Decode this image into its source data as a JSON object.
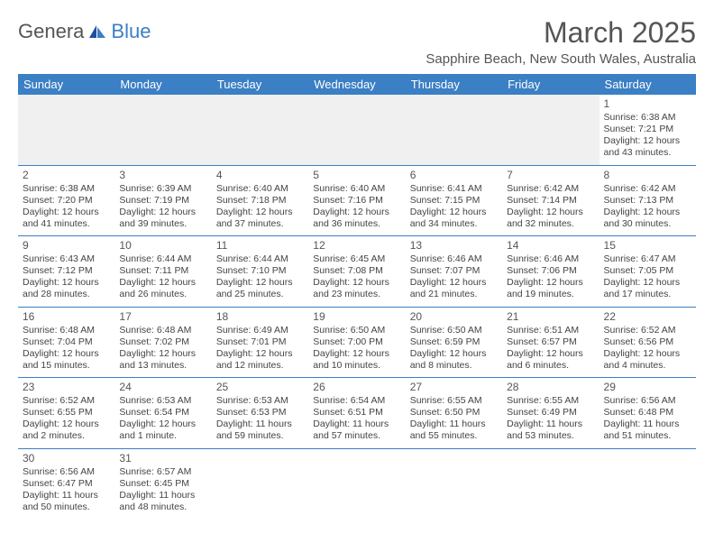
{
  "logo": {
    "part1": "Genera",
    "part2": "Blue"
  },
  "title": "March 2025",
  "location": "Sapphire Beach, New South Wales, Australia",
  "colors": {
    "header_bg": "#3b7fc4",
    "header_text": "#ffffff",
    "rule": "#3b7fc4",
    "text": "#444444",
    "empty_bg": "#f0f0f0"
  },
  "days_of_week": [
    "Sunday",
    "Monday",
    "Tuesday",
    "Wednesday",
    "Thursday",
    "Friday",
    "Saturday"
  ],
  "weeks": [
    [
      null,
      null,
      null,
      null,
      null,
      null,
      {
        "n": "1",
        "sr": "Sunrise: 6:38 AM",
        "ss": "Sunset: 7:21 PM",
        "dl1": "Daylight: 12 hours",
        "dl2": "and 43 minutes."
      }
    ],
    [
      {
        "n": "2",
        "sr": "Sunrise: 6:38 AM",
        "ss": "Sunset: 7:20 PM",
        "dl1": "Daylight: 12 hours",
        "dl2": "and 41 minutes."
      },
      {
        "n": "3",
        "sr": "Sunrise: 6:39 AM",
        "ss": "Sunset: 7:19 PM",
        "dl1": "Daylight: 12 hours",
        "dl2": "and 39 minutes."
      },
      {
        "n": "4",
        "sr": "Sunrise: 6:40 AM",
        "ss": "Sunset: 7:18 PM",
        "dl1": "Daylight: 12 hours",
        "dl2": "and 37 minutes."
      },
      {
        "n": "5",
        "sr": "Sunrise: 6:40 AM",
        "ss": "Sunset: 7:16 PM",
        "dl1": "Daylight: 12 hours",
        "dl2": "and 36 minutes."
      },
      {
        "n": "6",
        "sr": "Sunrise: 6:41 AM",
        "ss": "Sunset: 7:15 PM",
        "dl1": "Daylight: 12 hours",
        "dl2": "and 34 minutes."
      },
      {
        "n": "7",
        "sr": "Sunrise: 6:42 AM",
        "ss": "Sunset: 7:14 PM",
        "dl1": "Daylight: 12 hours",
        "dl2": "and 32 minutes."
      },
      {
        "n": "8",
        "sr": "Sunrise: 6:42 AM",
        "ss": "Sunset: 7:13 PM",
        "dl1": "Daylight: 12 hours",
        "dl2": "and 30 minutes."
      }
    ],
    [
      {
        "n": "9",
        "sr": "Sunrise: 6:43 AM",
        "ss": "Sunset: 7:12 PM",
        "dl1": "Daylight: 12 hours",
        "dl2": "and 28 minutes."
      },
      {
        "n": "10",
        "sr": "Sunrise: 6:44 AM",
        "ss": "Sunset: 7:11 PM",
        "dl1": "Daylight: 12 hours",
        "dl2": "and 26 minutes."
      },
      {
        "n": "11",
        "sr": "Sunrise: 6:44 AM",
        "ss": "Sunset: 7:10 PM",
        "dl1": "Daylight: 12 hours",
        "dl2": "and 25 minutes."
      },
      {
        "n": "12",
        "sr": "Sunrise: 6:45 AM",
        "ss": "Sunset: 7:08 PM",
        "dl1": "Daylight: 12 hours",
        "dl2": "and 23 minutes."
      },
      {
        "n": "13",
        "sr": "Sunrise: 6:46 AM",
        "ss": "Sunset: 7:07 PM",
        "dl1": "Daylight: 12 hours",
        "dl2": "and 21 minutes."
      },
      {
        "n": "14",
        "sr": "Sunrise: 6:46 AM",
        "ss": "Sunset: 7:06 PM",
        "dl1": "Daylight: 12 hours",
        "dl2": "and 19 minutes."
      },
      {
        "n": "15",
        "sr": "Sunrise: 6:47 AM",
        "ss": "Sunset: 7:05 PM",
        "dl1": "Daylight: 12 hours",
        "dl2": "and 17 minutes."
      }
    ],
    [
      {
        "n": "16",
        "sr": "Sunrise: 6:48 AM",
        "ss": "Sunset: 7:04 PM",
        "dl1": "Daylight: 12 hours",
        "dl2": "and 15 minutes."
      },
      {
        "n": "17",
        "sr": "Sunrise: 6:48 AM",
        "ss": "Sunset: 7:02 PM",
        "dl1": "Daylight: 12 hours",
        "dl2": "and 13 minutes."
      },
      {
        "n": "18",
        "sr": "Sunrise: 6:49 AM",
        "ss": "Sunset: 7:01 PM",
        "dl1": "Daylight: 12 hours",
        "dl2": "and 12 minutes."
      },
      {
        "n": "19",
        "sr": "Sunrise: 6:50 AM",
        "ss": "Sunset: 7:00 PM",
        "dl1": "Daylight: 12 hours",
        "dl2": "and 10 minutes."
      },
      {
        "n": "20",
        "sr": "Sunrise: 6:50 AM",
        "ss": "Sunset: 6:59 PM",
        "dl1": "Daylight: 12 hours",
        "dl2": "and 8 minutes."
      },
      {
        "n": "21",
        "sr": "Sunrise: 6:51 AM",
        "ss": "Sunset: 6:57 PM",
        "dl1": "Daylight: 12 hours",
        "dl2": "and 6 minutes."
      },
      {
        "n": "22",
        "sr": "Sunrise: 6:52 AM",
        "ss": "Sunset: 6:56 PM",
        "dl1": "Daylight: 12 hours",
        "dl2": "and 4 minutes."
      }
    ],
    [
      {
        "n": "23",
        "sr": "Sunrise: 6:52 AM",
        "ss": "Sunset: 6:55 PM",
        "dl1": "Daylight: 12 hours",
        "dl2": "and 2 minutes."
      },
      {
        "n": "24",
        "sr": "Sunrise: 6:53 AM",
        "ss": "Sunset: 6:54 PM",
        "dl1": "Daylight: 12 hours",
        "dl2": "and 1 minute."
      },
      {
        "n": "25",
        "sr": "Sunrise: 6:53 AM",
        "ss": "Sunset: 6:53 PM",
        "dl1": "Daylight: 11 hours",
        "dl2": "and 59 minutes."
      },
      {
        "n": "26",
        "sr": "Sunrise: 6:54 AM",
        "ss": "Sunset: 6:51 PM",
        "dl1": "Daylight: 11 hours",
        "dl2": "and 57 minutes."
      },
      {
        "n": "27",
        "sr": "Sunrise: 6:55 AM",
        "ss": "Sunset: 6:50 PM",
        "dl1": "Daylight: 11 hours",
        "dl2": "and 55 minutes."
      },
      {
        "n": "28",
        "sr": "Sunrise: 6:55 AM",
        "ss": "Sunset: 6:49 PM",
        "dl1": "Daylight: 11 hours",
        "dl2": "and 53 minutes."
      },
      {
        "n": "29",
        "sr": "Sunrise: 6:56 AM",
        "ss": "Sunset: 6:48 PM",
        "dl1": "Daylight: 11 hours",
        "dl2": "and 51 minutes."
      }
    ],
    [
      {
        "n": "30",
        "sr": "Sunrise: 6:56 AM",
        "ss": "Sunset: 6:47 PM",
        "dl1": "Daylight: 11 hours",
        "dl2": "and 50 minutes."
      },
      {
        "n": "31",
        "sr": "Sunrise: 6:57 AM",
        "ss": "Sunset: 6:45 PM",
        "dl1": "Daylight: 11 hours",
        "dl2": "and 48 minutes."
      },
      null,
      null,
      null,
      null,
      null
    ]
  ]
}
